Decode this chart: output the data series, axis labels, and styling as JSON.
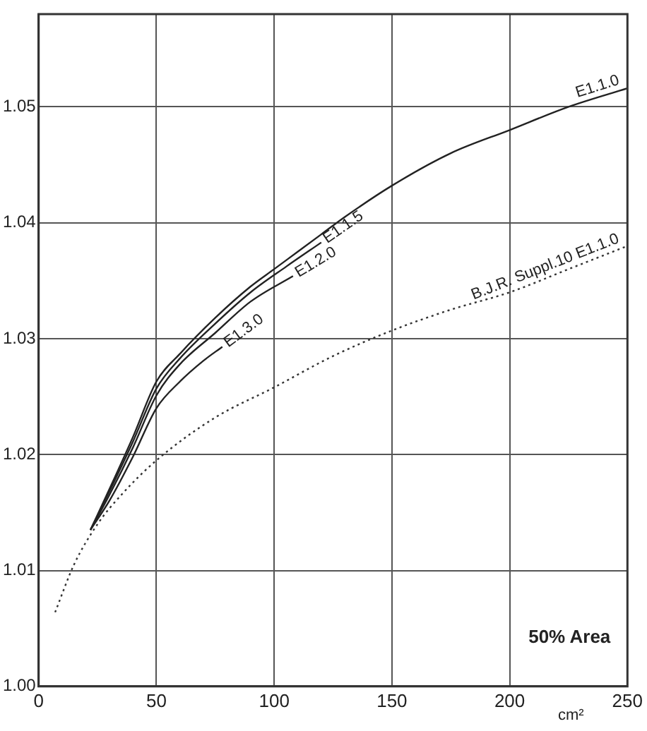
{
  "chart_data": {
    "type": "line",
    "xlabel": "cm²",
    "annotations": [
      "50% Area"
    ],
    "xlim": [
      0,
      250
    ],
    "xticks": [
      0,
      50,
      100,
      150,
      200,
      250
    ],
    "ylim": [
      1.0,
      1.058
    ],
    "yticks": [
      {
        "value": 1.0,
        "label": "1.00"
      },
      {
        "value": 1.01,
        "label": "1.01"
      },
      {
        "value": 1.02,
        "label": "1.02"
      },
      {
        "value": 1.03,
        "label": "1.03"
      },
      {
        "value": 1.04,
        "label": "1.04"
      },
      {
        "value": 1.05,
        "label": "1.05"
      }
    ],
    "grid": true,
    "legend": false,
    "marker": "none",
    "series": [
      {
        "name": "E1.1.0",
        "color": "#222222",
        "line_style": "solid",
        "x": [
          22,
          30,
          40,
          50,
          60,
          75,
          90,
          100,
          110,
          120,
          130,
          150,
          175,
          200,
          225,
          250
        ],
        "values": [
          1.0135,
          1.017,
          1.0215,
          1.0263,
          1.0287,
          1.0318,
          1.0345,
          1.036,
          1.0375,
          1.039,
          1.0405,
          1.0432,
          1.046,
          1.048,
          1.05,
          1.0516
        ]
      },
      {
        "name": "E1.1.5",
        "color": "#222222",
        "line_style": "solid",
        "x": [
          22,
          30,
          40,
          50,
          60,
          75,
          90,
          105,
          120
        ],
        "values": [
          1.0135,
          1.0168,
          1.0211,
          1.0257,
          1.0283,
          1.0313,
          1.034,
          1.0362,
          1.0383
        ]
      },
      {
        "name": "E1.2.0",
        "color": "#222222",
        "line_style": "solid",
        "x": [
          22,
          30,
          40,
          50,
          60,
          75,
          90,
          108
        ],
        "values": [
          1.0135,
          1.0165,
          1.0206,
          1.0251,
          1.0278,
          1.0305,
          1.0332,
          1.0354
        ]
      },
      {
        "name": "E1.3.0",
        "color": "#222222",
        "line_style": "solid",
        "x": [
          22,
          30,
          40,
          50,
          60,
          70,
          78
        ],
        "values": [
          1.0135,
          1.016,
          1.0198,
          1.024,
          1.0263,
          1.0281,
          1.0293
        ]
      },
      {
        "name": "B.J.R. Suppl.10 E1.1.0",
        "color": "#333333",
        "line_style": "dotted",
        "x": [
          7,
          15,
          25,
          35,
          50,
          75,
          100,
          125,
          150,
          175,
          200,
          225,
          250
        ],
        "values": [
          1.0064,
          1.0105,
          1.014,
          1.0165,
          1.0195,
          1.0232,
          1.0258,
          1.0285,
          1.0307,
          1.0325,
          1.034,
          1.036,
          1.038
        ]
      }
    ]
  }
}
